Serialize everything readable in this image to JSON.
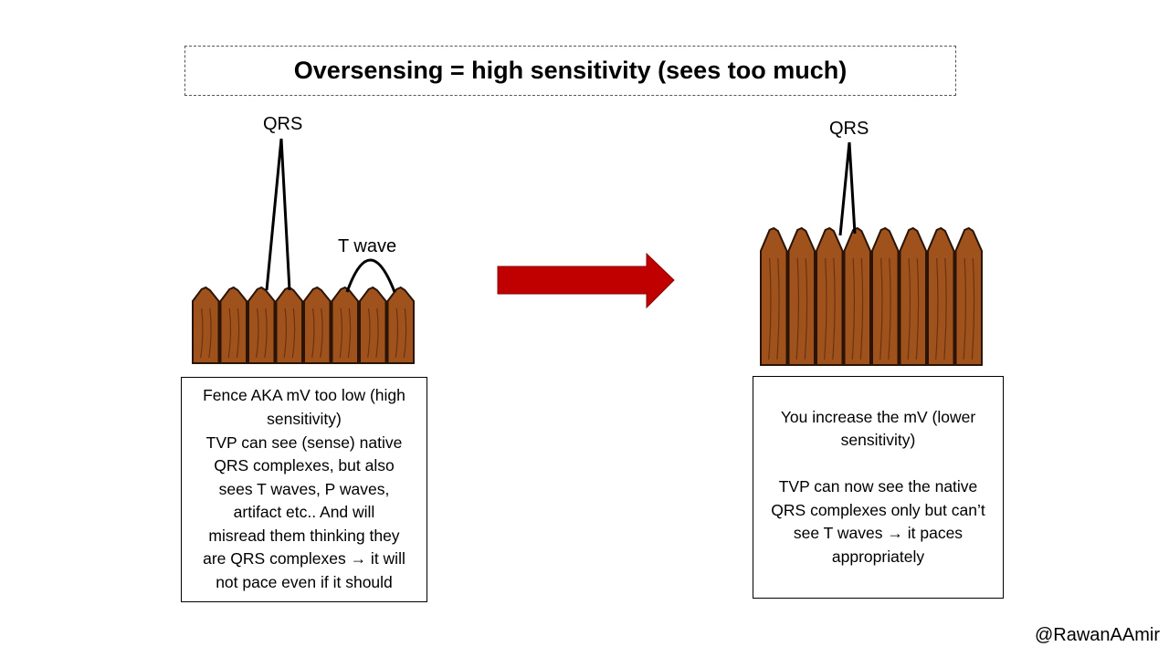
{
  "title": "Oversensing = high sensitivity (sees too much)",
  "left_panel": {
    "qrs_label": "QRS",
    "t_wave_label": "T wave",
    "text_lines": [
      "Fence AKA mV too low (high",
      "sensitivity)",
      "TVP can see (sense) native",
      "QRS complexes, but also",
      "sees T waves, P waves,",
      "artifact etc.. And will",
      "misread them thinking they",
      "are QRS complexes → it will",
      "not pace even if it should"
    ]
  },
  "right_panel": {
    "qrs_label": "QRS",
    "paragraph1_lines": [
      "You increase the mV (lower",
      "sensitivity)"
    ],
    "paragraph2_lines": [
      "TVP can now see the native",
      "QRS complexes only but can’t",
      "see T waves → it paces",
      "appropriately"
    ]
  },
  "colors": {
    "arrow": "#c00000",
    "fence_wood": "#a0521d",
    "fence_outline": "#2b1405"
  },
  "footer_handle": "@RawanAAmir"
}
